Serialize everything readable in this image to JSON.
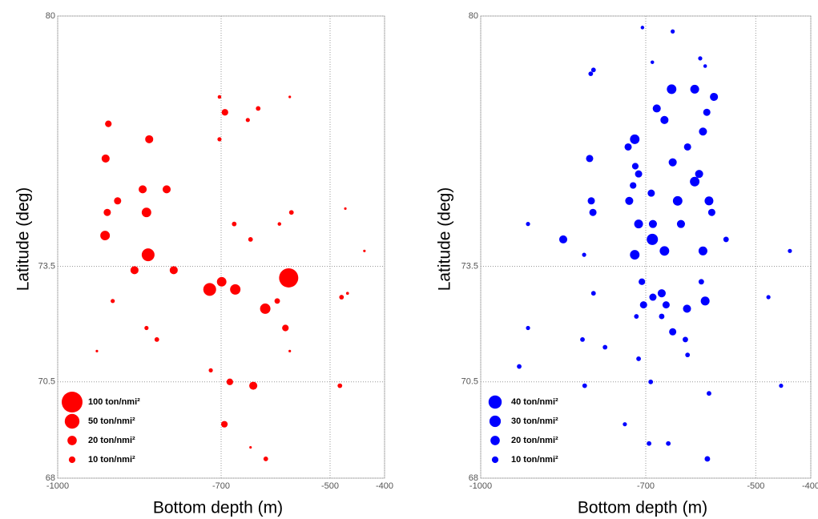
{
  "chart_data": [
    {
      "type": "scatter",
      "color": "#ff0000",
      "xlabel": "Bottom depth (m)",
      "ylabel": "Latitude (deg)",
      "xlim": [
        -1000,
        -400
      ],
      "ylim": [
        68,
        80
      ],
      "xticks": [
        -1000,
        -700,
        -500,
        -400
      ],
      "yticks": [
        68,
        70.5,
        73.5,
        80
      ],
      "grid": true,
      "x": [
        -907,
        -832,
        -912,
        -844,
        -800,
        -890,
        -909,
        -837,
        -913,
        -834,
        -859,
        -787,
        -721,
        -699,
        -674,
        -576,
        -619,
        -597,
        -582,
        -479,
        -899,
        -837,
        -818,
        -719,
        -684,
        -641,
        -482,
        -694,
        -618,
        -693,
        -703,
        -632,
        -651,
        -703,
        -676,
        -646,
        -571,
        -593,
        -928,
        -574,
        -574,
        -437,
        -472,
        -468,
        -646
      ],
      "y": [
        77.2,
        76.8,
        76.3,
        75.5,
        75.5,
        75.2,
        74.9,
        74.9,
        74.3,
        73.8,
        73.4,
        73.4,
        72.9,
        73.1,
        72.9,
        73.2,
        72.4,
        72.6,
        71.9,
        72.7,
        72.6,
        71.9,
        71.6,
        70.8,
        70.5,
        70.4,
        70.4,
        69.4,
        68.5,
        77.5,
        76.8,
        77.6,
        77.3,
        77.9,
        74.6,
        74.2,
        74.9,
        74.6,
        71.3,
        77.9,
        71.3,
        73.9,
        75.0,
        72.8,
        68.8
      ],
      "sizes": [
        10,
        15,
        15,
        15,
        15,
        12,
        12,
        21,
        21,
        38,
        15,
        15,
        38,
        21,
        25,
        85,
        25,
        7,
        10,
        5,
        4,
        4,
        5,
        4,
        10,
        15,
        5,
        10,
        5,
        10,
        4,
        5,
        4,
        3,
        5,
        5,
        5,
        3,
        1.5,
        1.5,
        1.5,
        1.5,
        1.5,
        2,
        1.5
      ],
      "size_legend": [
        {
          "value": 100,
          "label": "100 ton/nmi²"
        },
        {
          "value": 50,
          "label": "50 ton/nmi²"
        },
        {
          "value": 20,
          "label": "20 ton/nmi²"
        },
        {
          "value": 10,
          "label": "10 ton/nmi²"
        }
      ]
    },
    {
      "type": "scatter",
      "color": "#0000ff",
      "xlabel": "Bottom depth (m)",
      "ylabel": "Latitude (deg)",
      "xlim": [
        -1000,
        -400
      ],
      "ylim": [
        68,
        80
      ],
      "xticks": [
        -1000,
        -700,
        -500,
        -400
      ],
      "yticks": [
        68,
        70.5,
        73.5,
        80
      ],
      "grid": true,
      "x": [
        -653,
        -611,
        -576,
        -680,
        -666,
        -589,
        -596,
        -720,
        -732,
        -802,
        -624,
        -719,
        -713,
        -651,
        -603,
        -611,
        -723,
        -690,
        -799,
        -730,
        -642,
        -585,
        -796,
        -580,
        -713,
        -687,
        -636,
        -850,
        -688,
        -666,
        -720,
        -596,
        -554,
        -707,
        -599,
        -671,
        -687,
        -663,
        -704,
        -625,
        -592,
        -671,
        -651,
        -628,
        -795,
        -717,
        -815,
        -774,
        -624,
        -713,
        -930,
        -811,
        -691,
        -585,
        -477,
        -438,
        -454,
        -914,
        -914,
        -812,
        -694,
        -659,
        -588,
        -738,
        -800,
        -795,
        -651,
        -706,
        -601,
        -592,
        -688
      ],
      "y": [
        78.1,
        78.1,
        77.9,
        77.6,
        77.3,
        77.5,
        77.0,
        76.8,
        76.6,
        76.3,
        76.6,
        76.1,
        75.9,
        76.2,
        75.9,
        75.7,
        75.6,
        75.4,
        75.2,
        75.2,
        75.2,
        75.2,
        74.9,
        74.9,
        74.6,
        74.6,
        74.6,
        74.2,
        74.2,
        73.9,
        73.8,
        73.9,
        74.2,
        73.1,
        73.1,
        72.8,
        72.7,
        72.5,
        72.5,
        72.4,
        72.6,
        72.2,
        71.8,
        71.6,
        72.8,
        72.2,
        71.6,
        71.4,
        71.2,
        71.1,
        70.9,
        70.4,
        70.5,
        70.2,
        72.7,
        73.9,
        70.4,
        71.9,
        74.6,
        73.8,
        68.9,
        68.9,
        68.5,
        69.4,
        78.5,
        78.6,
        79.6,
        79.7,
        78.9,
        78.7,
        78.8
      ],
      "sizes": [
        21,
        18,
        15,
        15,
        15,
        12,
        15,
        21,
        12,
        12,
        12,
        10,
        12,
        15,
        15,
        21,
        10,
        12,
        12,
        15,
        21,
        18,
        12,
        12,
        18,
        15,
        15,
        15,
        29,
        21,
        21,
        18,
        7,
        10,
        7,
        15,
        12,
        12,
        12,
        15,
        18,
        7,
        12,
        7,
        5,
        5,
        5,
        5,
        5,
        5,
        5,
        5,
        5,
        5,
        4,
        4,
        4,
        4,
        4,
        4,
        5,
        5,
        7,
        4,
        5,
        5,
        4,
        3,
        4,
        3,
        3
      ],
      "size_legend": [
        {
          "value": 40,
          "label": "40 ton/nmi²"
        },
        {
          "value": 30,
          "label": "30 ton/nmi²"
        },
        {
          "value": 20,
          "label": "20 ton/nmi²"
        },
        {
          "value": 10,
          "label": "10 ton/nmi²"
        }
      ]
    }
  ]
}
